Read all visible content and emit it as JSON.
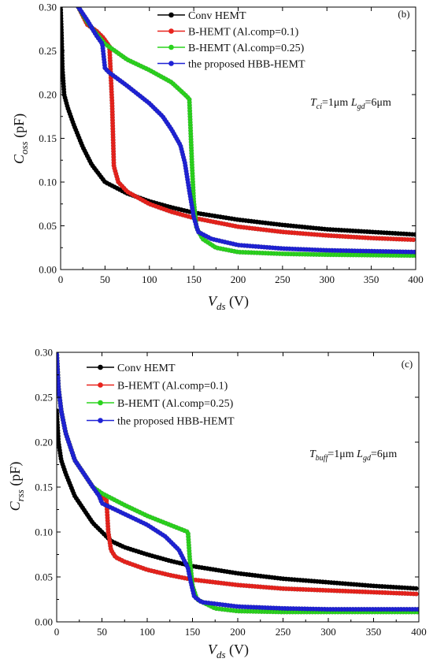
{
  "chart_data": [
    {
      "type": "line",
      "panel_label": "(b)",
      "xlabel_main": "V",
      "xlabel_sub": "ds",
      "xlabel_unit": " (V)",
      "ylabel_main": "C",
      "ylabel_sub": "oss",
      "ylabel_unit": " (pF)",
      "xlim": [
        0,
        400
      ],
      "ylim": [
        0,
        0.3
      ],
      "xticks": [
        "0",
        "50",
        "100",
        "150",
        "200",
        "250",
        "300",
        "350",
        "400"
      ],
      "yticks": [
        "0.00",
        "0.05",
        "0.10",
        "0.15",
        "0.20",
        "0.25",
        "0.30"
      ],
      "annotation": {
        "p1_main": "T",
        "p1_sub": "ci",
        "p1_val": "=1μm",
        "p2_main": "L",
        "p2_sub": "gd",
        "p2_val": "=6μm"
      },
      "legend_position": "top-right",
      "series": [
        {
          "name": "Conv HEMT",
          "color": "#000000",
          "points": [
            [
              0,
              0.3
            ],
            [
              1,
              0.27
            ],
            [
              2,
              0.23
            ],
            [
              4,
              0.2
            ],
            [
              8,
              0.185
            ],
            [
              15,
              0.165
            ],
            [
              25,
              0.14
            ],
            [
              35,
              0.12
            ],
            [
              50,
              0.1
            ],
            [
              75,
              0.087
            ],
            [
              100,
              0.078
            ],
            [
              125,
              0.071
            ],
            [
              150,
              0.065
            ],
            [
              200,
              0.057
            ],
            [
              250,
              0.051
            ],
            [
              300,
              0.046
            ],
            [
              350,
              0.043
            ],
            [
              400,
              0.04
            ]
          ]
        },
        {
          "name": "B-HEMT (Al.comp=0.1)",
          "color": "#e8231d",
          "points": [
            [
              20,
              0.3
            ],
            [
              30,
              0.28
            ],
            [
              40,
              0.273
            ],
            [
              48,
              0.265
            ],
            [
              55,
              0.255
            ],
            [
              58,
              0.19
            ],
            [
              60,
              0.118
            ],
            [
              65,
              0.1
            ],
            [
              75,
              0.089
            ],
            [
              100,
              0.075
            ],
            [
              125,
              0.066
            ],
            [
              150,
              0.059
            ],
            [
              200,
              0.049
            ],
            [
              250,
              0.043
            ],
            [
              300,
              0.039
            ],
            [
              350,
              0.036
            ],
            [
              400,
              0.034
            ]
          ]
        },
        {
          "name": "B-HEMT (Al.comp=0.25)",
          "color": "#2bd31e",
          "points": [
            [
              20,
              0.3
            ],
            [
              30,
              0.283
            ],
            [
              40,
              0.27
            ],
            [
              50,
              0.258
            ],
            [
              75,
              0.24
            ],
            [
              100,
              0.228
            ],
            [
              125,
              0.214
            ],
            [
              140,
              0.2
            ],
            [
              145,
              0.195
            ],
            [
              148,
              0.12
            ],
            [
              150,
              0.078
            ],
            [
              153,
              0.048
            ],
            [
              160,
              0.035
            ],
            [
              175,
              0.025
            ],
            [
              200,
              0.02
            ],
            [
              250,
              0.018
            ],
            [
              300,
              0.017
            ],
            [
              400,
              0.016
            ]
          ]
        },
        {
          "name": "the proposed HBB-HEMT",
          "color": "#1f22d6",
          "points": [
            [
              20,
              0.3
            ],
            [
              30,
              0.285
            ],
            [
              40,
              0.268
            ],
            [
              47,
              0.258
            ],
            [
              50,
              0.23
            ],
            [
              55,
              0.225
            ],
            [
              75,
              0.21
            ],
            [
              100,
              0.19
            ],
            [
              115,
              0.175
            ],
            [
              125,
              0.16
            ],
            [
              135,
              0.142
            ],
            [
              140,
              0.122
            ],
            [
              145,
              0.09
            ],
            [
              150,
              0.06
            ],
            [
              155,
              0.043
            ],
            [
              170,
              0.035
            ],
            [
              200,
              0.028
            ],
            [
              250,
              0.024
            ],
            [
              300,
              0.022
            ],
            [
              350,
              0.021
            ],
            [
              400,
              0.02
            ]
          ]
        }
      ]
    },
    {
      "type": "line",
      "panel_label": "(c)",
      "xlabel_main": "V",
      "xlabel_sub": "ds",
      "xlabel_unit": " (V)",
      "ylabel_main": "C",
      "ylabel_sub": "rss",
      "ylabel_unit": " (pF)",
      "xlim": [
        0,
        400
      ],
      "ylim": [
        0,
        0.3
      ],
      "xticks": [
        "0",
        "50",
        "100",
        "150",
        "200",
        "250",
        "300",
        "350",
        "400"
      ],
      "yticks": [
        "0.00",
        "0.05",
        "0.10",
        "0.15",
        "0.20",
        "0.25",
        "0.30"
      ],
      "annotation": {
        "p1_main": "T",
        "p1_sub": "buff",
        "p1_val": "=1μm",
        "p2_main": "L",
        "p2_sub": "gd",
        "p2_val": "=6μm"
      },
      "legend_position": "top-left",
      "series": [
        {
          "name": "Conv HEMT",
          "color": "#000000",
          "points": [
            [
              0,
              0.235
            ],
            [
              2,
              0.2
            ],
            [
              5,
              0.18
            ],
            [
              10,
              0.165
            ],
            [
              20,
              0.14
            ],
            [
              30,
              0.125
            ],
            [
              40,
              0.11
            ],
            [
              50,
              0.1
            ],
            [
              60,
              0.09
            ],
            [
              75,
              0.083
            ],
            [
              100,
              0.075
            ],
            [
              125,
              0.068
            ],
            [
              150,
              0.062
            ],
            [
              200,
              0.054
            ],
            [
              250,
              0.048
            ],
            [
              300,
              0.044
            ],
            [
              350,
              0.04
            ],
            [
              400,
              0.037
            ]
          ]
        },
        {
          "name": "B-HEMT (Al.comp=0.1)",
          "color": "#e8231d",
          "points": [
            [
              0,
              0.3
            ],
            [
              2,
              0.26
            ],
            [
              5,
              0.235
            ],
            [
              10,
              0.21
            ],
            [
              20,
              0.18
            ],
            [
              30,
              0.165
            ],
            [
              40,
              0.15
            ],
            [
              50,
              0.14
            ],
            [
              55,
              0.135
            ],
            [
              57,
              0.1
            ],
            [
              60,
              0.08
            ],
            [
              65,
              0.072
            ],
            [
              75,
              0.067
            ],
            [
              100,
              0.058
            ],
            [
              125,
              0.052
            ],
            [
              150,
              0.047
            ],
            [
              200,
              0.041
            ],
            [
              250,
              0.037
            ],
            [
              300,
              0.035
            ],
            [
              350,
              0.033
            ],
            [
              400,
              0.031
            ]
          ]
        },
        {
          "name": "B-HEMT (Al.comp=0.25)",
          "color": "#2bd31e",
          "points": [
            [
              0,
              0.3
            ],
            [
              2,
              0.26
            ],
            [
              5,
              0.235
            ],
            [
              10,
              0.21
            ],
            [
              20,
              0.18
            ],
            [
              30,
              0.165
            ],
            [
              40,
              0.15
            ],
            [
              50,
              0.143
            ],
            [
              75,
              0.13
            ],
            [
              100,
              0.118
            ],
            [
              125,
              0.108
            ],
            [
              145,
              0.1
            ],
            [
              147,
              0.07
            ],
            [
              150,
              0.04
            ],
            [
              155,
              0.025
            ],
            [
              175,
              0.015
            ],
            [
              200,
              0.012
            ],
            [
              250,
              0.011
            ],
            [
              300,
              0.011
            ],
            [
              400,
              0.011
            ]
          ]
        },
        {
          "name": "the proposed HBB-HEMT",
          "color": "#1f22d6",
          "points": [
            [
              0,
              0.3
            ],
            [
              2,
              0.26
            ],
            [
              5,
              0.235
            ],
            [
              10,
              0.21
            ],
            [
              20,
              0.18
            ],
            [
              30,
              0.165
            ],
            [
              40,
              0.15
            ],
            [
              47,
              0.14
            ],
            [
              50,
              0.132
            ],
            [
              75,
              0.12
            ],
            [
              100,
              0.108
            ],
            [
              120,
              0.095
            ],
            [
              135,
              0.08
            ],
            [
              145,
              0.06
            ],
            [
              148,
              0.045
            ],
            [
              152,
              0.028
            ],
            [
              160,
              0.022
            ],
            [
              200,
              0.017
            ],
            [
              250,
              0.015
            ],
            [
              300,
              0.014
            ],
            [
              350,
              0.014
            ],
            [
              400,
              0.014
            ]
          ]
        }
      ]
    }
  ]
}
